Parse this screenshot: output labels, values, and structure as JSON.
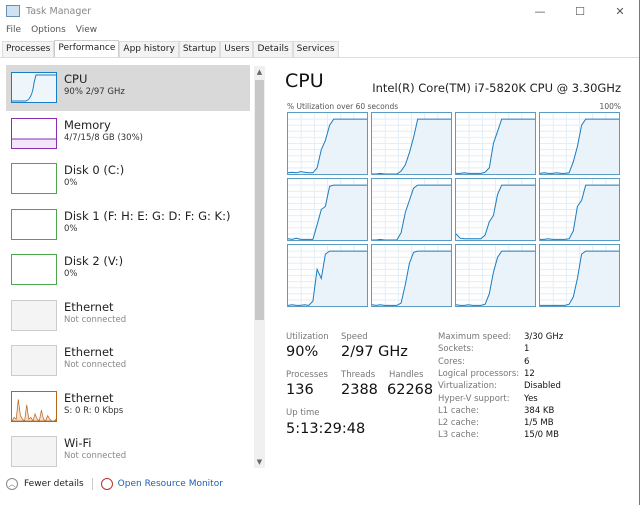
{
  "window": {
    "title": "Task Manager",
    "controls": [
      "—",
      "☐",
      "✕"
    ]
  },
  "menu": [
    "File",
    "Options",
    "View"
  ],
  "tabs": [
    {
      "label": "Processes"
    },
    {
      "label": "Performance",
      "active": true
    },
    {
      "label": "App history"
    },
    {
      "label": "Startup"
    },
    {
      "label": "Users"
    },
    {
      "label": "Details"
    },
    {
      "label": "Services"
    }
  ],
  "sidebar": {
    "items": [
      {
        "name": "CPU",
        "sub": "90% 2/97 GHz",
        "color": "#1a7cc1",
        "selected": true
      },
      {
        "name": "Memory",
        "sub": "4/7/15/8 GB (30%)",
        "color": "#8b2fb0"
      },
      {
        "name": "Disk 0 (C:)",
        "sub": "0%",
        "color": "#4ca64c"
      },
      {
        "name": "Disk 1 (F: H: E: G: D: F: G: K:)",
        "sub": "0%",
        "color": "#4ca64c"
      },
      {
        "name": "Disk 2 (V:)",
        "sub": "0%",
        "color": "#4ca64c"
      },
      {
        "name": "Ethernet",
        "sub": "Not connected",
        "color": "#cccccc"
      },
      {
        "name": "Ethernet",
        "sub": "Not connected",
        "color": "#cccccc"
      },
      {
        "name": "Ethernet",
        "sub": "S: 0 R: 0 Kbps",
        "color": "#b5651d"
      },
      {
        "name": "Wi-Fi",
        "sub": "Not connected",
        "color": "#cccccc"
      }
    ]
  },
  "footer": {
    "fewer_details": "Fewer details",
    "resource_monitor": "Open Resource Monitor"
  },
  "cpu": {
    "title": "CPU",
    "model": "Intel(R) Core(TM) i7-5820K CPU @ 3.30GHz",
    "graph_caption": "% Utilization over 60 seconds",
    "graph_max": "100%",
    "accent": "#1a7cc1",
    "cores": [
      [
        2,
        3,
        2,
        4,
        3,
        2,
        2,
        10,
        40,
        55,
        80,
        90,
        90,
        90,
        90,
        90,
        90,
        90,
        90,
        90
      ],
      [
        0,
        0,
        1,
        0,
        0,
        0,
        0,
        5,
        15,
        35,
        60,
        90,
        90,
        90,
        90,
        90,
        90,
        90,
        90,
        90
      ],
      [
        1,
        1,
        2,
        1,
        1,
        1,
        1,
        3,
        10,
        50,
        70,
        90,
        90,
        90,
        90,
        90,
        90,
        90,
        90,
        90
      ],
      [
        1,
        2,
        1,
        1,
        2,
        1,
        1,
        2,
        20,
        45,
        80,
        90,
        90,
        90,
        90,
        90,
        90,
        90,
        90,
        90
      ],
      [
        2,
        1,
        3,
        1,
        1,
        1,
        1,
        25,
        50,
        55,
        88,
        90,
        90,
        90,
        90,
        90,
        90,
        90,
        90,
        90
      ],
      [
        0,
        0,
        1,
        0,
        0,
        0,
        0,
        12,
        45,
        65,
        85,
        90,
        90,
        90,
        90,
        90,
        90,
        90,
        90,
        90
      ],
      [
        10,
        3,
        2,
        2,
        2,
        2,
        2,
        8,
        30,
        40,
        75,
        90,
        90,
        90,
        90,
        90,
        90,
        90,
        90,
        90
      ],
      [
        1,
        1,
        2,
        1,
        1,
        1,
        1,
        2,
        15,
        55,
        65,
        90,
        90,
        90,
        90,
        90,
        90,
        90,
        90,
        90
      ],
      [
        1,
        2,
        1,
        1,
        2,
        1,
        8,
        60,
        45,
        85,
        90,
        90,
        90,
        90,
        90,
        90,
        90,
        90,
        90,
        90
      ],
      [
        2,
        1,
        2,
        1,
        1,
        1,
        1,
        5,
        35,
        70,
        88,
        90,
        90,
        90,
        90,
        90,
        90,
        90,
        90,
        90
      ],
      [
        2,
        1,
        1,
        2,
        1,
        1,
        1,
        3,
        20,
        55,
        80,
        90,
        90,
        90,
        90,
        90,
        90,
        90,
        90,
        90
      ],
      [
        1,
        1,
        1,
        1,
        1,
        1,
        1,
        3,
        15,
        45,
        85,
        90,
        90,
        90,
        90,
        90,
        90,
        90,
        90,
        90
      ]
    ],
    "utilization": {
      "label": "Utilization",
      "value": "90%"
    },
    "speed": {
      "label": "Speed",
      "value": "2/97 GHz"
    },
    "processes": {
      "label": "Processes",
      "value": "136"
    },
    "threads": {
      "label": "Threads",
      "value": "2388"
    },
    "handles": {
      "label": "Handles",
      "value": "62268"
    },
    "uptime": {
      "label": "Up time",
      "value": "5:13:29:48"
    },
    "specs": [
      {
        "k": "Maximum speed:",
        "v": "3/30 GHz"
      },
      {
        "k": "Sockets:",
        "v": "1"
      },
      {
        "k": "Cores:",
        "v": "6"
      },
      {
        "k": "Logical processors:",
        "v": "12"
      },
      {
        "k": "Virtualization:",
        "v": "Disabled"
      },
      {
        "k": "Hyper-V support:",
        "v": "Yes"
      },
      {
        "k": "L1 cache:",
        "v": "384 KB"
      },
      {
        "k": "L2 cache:",
        "v": "1/5 MB"
      },
      {
        "k": "L3 cache:",
        "v": "15/0 MB"
      }
    ]
  }
}
